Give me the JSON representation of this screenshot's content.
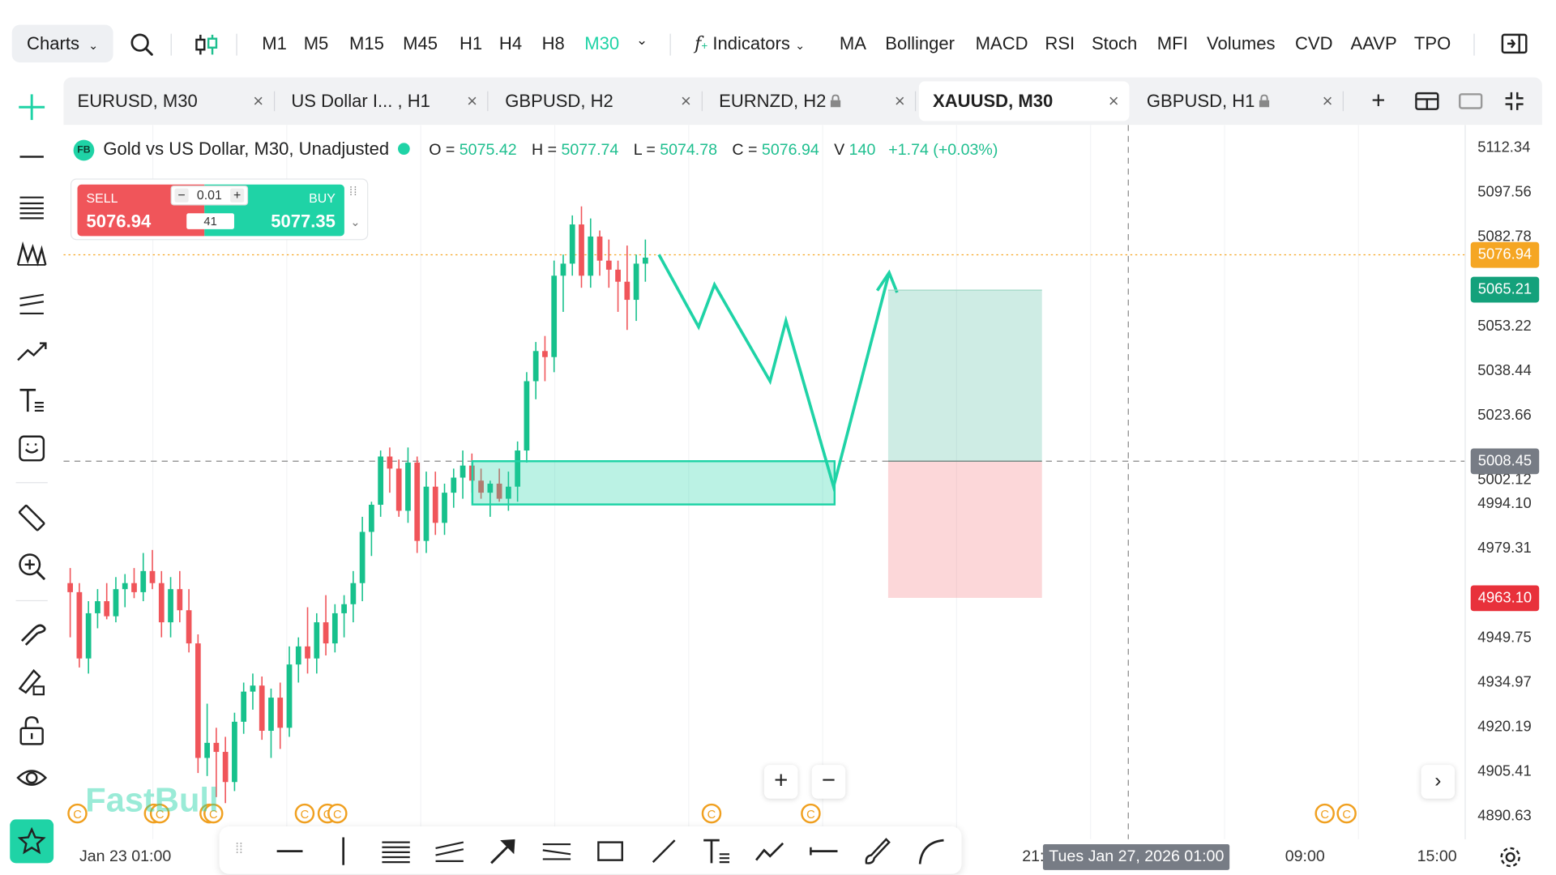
{
  "topbar": {
    "charts_label": "Charts",
    "timeframes": [
      "M1",
      "M5",
      "M15",
      "M45",
      "H1",
      "H4",
      "H8",
      "M30"
    ],
    "active_timeframe": "M30",
    "indicators_label": "Indicators",
    "indicators": [
      "MA",
      "Bollinger",
      "MACD",
      "RSI",
      "Stoch",
      "MFI",
      "Volumes",
      "CVD",
      "AAVP",
      "TPO"
    ]
  },
  "tabs": [
    {
      "label": "EURUSD, M30",
      "locked": false,
      "active": false
    },
    {
      "label": "US Dollar I...  , H1",
      "locked": false,
      "active": false
    },
    {
      "label": "GBPUSD, H2",
      "locked": false,
      "active": false
    },
    {
      "label": "EURNZD, H2",
      "locked": true,
      "active": false
    },
    {
      "label": "XAUUSD, M30",
      "locked": false,
      "active": true
    },
    {
      "label": "GBPUSD, H1",
      "locked": true,
      "active": false
    }
  ],
  "legend": {
    "badge": "FB",
    "title": "Gold vs US Dollar, M30, Unadjusted",
    "o_label": "O =",
    "o": "5075.42",
    "h_label": "H =",
    "h": "5077.74",
    "l_label": "L =",
    "l": "5074.78",
    "c_label": "C =",
    "c": "5076.94",
    "v_label": "V",
    "v": "140",
    "change": "+1.74 (+0.03%)"
  },
  "trade": {
    "sell_label": "SELL",
    "sell_price": "5076.94",
    "buy_label": "BUY",
    "buy_price": "5077.35",
    "lot": "0.01",
    "spread": "41"
  },
  "price_axis": {
    "labels": [
      "5112.34",
      "5097.56",
      "5082.78",
      "5053.22",
      "5038.44",
      "5023.66",
      "5002.12",
      "4994.10",
      "4979.31",
      "4949.75",
      "4934.97",
      "4920.19",
      "4905.41",
      "4890.63"
    ],
    "tags": [
      {
        "text": "5076.94",
        "color": "#f5a623"
      },
      {
        "text": "5065.21",
        "color": "#14a17b"
      },
      {
        "text": "5008.45",
        "color": "#777c85"
      },
      {
        "text": "4963.10",
        "color": "#e8313b"
      }
    ]
  },
  "time_axis": {
    "labels": [
      "Jan 23 01:00",
      "21:",
      "09:00",
      "15:00"
    ],
    "crosshair_label": "Tues Jan 27, 2026 01:00"
  },
  "watermark": "FastBull",
  "colors": {
    "accent": "#1fd3a6",
    "up": "#17c18c",
    "down": "#f0555a",
    "zone": "#1fd3a6"
  },
  "chart_data": {
    "type": "candlestick",
    "symbol": "XAUUSD",
    "timeframe": "M30",
    "ylim": [
      4883,
      5120
    ],
    "candles": [
      [
        4968,
        4973,
        4950,
        4965
      ],
      [
        4965,
        4968,
        4940,
        4943
      ],
      [
        4943,
        4962,
        4938,
        4958
      ],
      [
        4958,
        4966,
        4953,
        4962
      ],
      [
        4962,
        4968,
        4956,
        4957
      ],
      [
        4957,
        4970,
        4955,
        4966
      ],
      [
        4966,
        4971,
        4960,
        4968
      ],
      [
        4968,
        4973,
        4963,
        4965
      ],
      [
        4965,
        4978,
        4962,
        4972
      ],
      [
        4972,
        4979,
        4966,
        4968
      ],
      [
        4968,
        4972,
        4950,
        4955
      ],
      [
        4955,
        4970,
        4950,
        4966
      ],
      [
        4966,
        4972,
        4955,
        4959
      ],
      [
        4959,
        4966,
        4945,
        4948
      ],
      [
        4948,
        4951,
        4905,
        4910
      ],
      [
        4910,
        4928,
        4904,
        4915
      ],
      [
        4915,
        4920,
        4897,
        4912
      ],
      [
        4912,
        4917,
        4895,
        4902
      ],
      [
        4902,
        4925,
        4899,
        4922
      ],
      [
        4922,
        4935,
        4918,
        4932
      ],
      [
        4932,
        4938,
        4926,
        4934
      ],
      [
        4934,
        4937,
        4916,
        4919
      ],
      [
        4919,
        4933,
        4910,
        4930
      ],
      [
        4930,
        4935,
        4913,
        4920
      ],
      [
        4920,
        4947,
        4917,
        4941
      ],
      [
        4941,
        4950,
        4935,
        4947
      ],
      [
        4947,
        4960,
        4938,
        4943
      ],
      [
        4943,
        4958,
        4938,
        4955
      ],
      [
        4955,
        4964,
        4944,
        4948
      ],
      [
        4948,
        4961,
        4945,
        4958
      ],
      [
        4958,
        4964,
        4950,
        4961
      ],
      [
        4961,
        4972,
        4955,
        4968
      ],
      [
        4968,
        4990,
        4962,
        4985
      ],
      [
        4985,
        4995,
        4977,
        4994
      ],
      [
        4994,
        5012,
        4990,
        5010
      ],
      [
        5010,
        5013,
        4998,
        5006
      ],
      [
        5006,
        5009,
        4990,
        4992
      ],
      [
        4992,
        5013,
        4988,
        5008
      ],
      [
        5008,
        5010,
        4978,
        4982
      ],
      [
        4982,
        5005,
        4978,
        5000
      ],
      [
        5000,
        5005,
        4984,
        4988
      ],
      [
        4988,
        5001,
        4984,
        4998
      ],
      [
        4998,
        5006,
        4993,
        5003
      ],
      [
        5003,
        5012,
        4996,
        5007
      ],
      [
        5007,
        5011,
        4998,
        5002
      ],
      [
        5002,
        5006,
        4996,
        4998
      ],
      [
        4998,
        5002,
        4990,
        5001
      ],
      [
        5001,
        5006,
        4995,
        4996
      ],
      [
        4996,
        5005,
        4992,
        5000
      ],
      [
        5000,
        5015,
        4995,
        5012
      ],
      [
        5012,
        5038,
        5008,
        5035
      ],
      [
        5035,
        5048,
        5029,
        5045
      ],
      [
        5045,
        5050,
        5035,
        5043
      ],
      [
        5043,
        5075,
        5038,
        5070
      ],
      [
        5070,
        5077,
        5058,
        5074
      ],
      [
        5074,
        5090,
        5070,
        5087
      ],
      [
        5087,
        5093,
        5066,
        5070
      ],
      [
        5070,
        5089,
        5066,
        5083
      ],
      [
        5083,
        5085,
        5070,
        5075
      ],
      [
        5075,
        5082,
        5066,
        5072
      ],
      [
        5072,
        5075,
        5058,
        5068
      ],
      [
        5068,
        5080,
        5052,
        5062
      ],
      [
        5062,
        5077,
        5055,
        5074
      ],
      [
        5074,
        5082,
        5068,
        5076
      ]
    ],
    "demand_zone": {
      "top": 5008.45,
      "bottom": 4994.1
    },
    "projection": [
      [
        5077,
        0
      ],
      [
        5053,
        5
      ],
      [
        5067,
        7
      ],
      [
        5035,
        14
      ],
      [
        5055,
        16
      ],
      [
        5000,
        22
      ],
      [
        5071,
        29
      ]
    ],
    "position": {
      "target": 5065.21,
      "entry": 5008.45,
      "stop": 4963.1
    },
    "current_price": 5076.94
  }
}
